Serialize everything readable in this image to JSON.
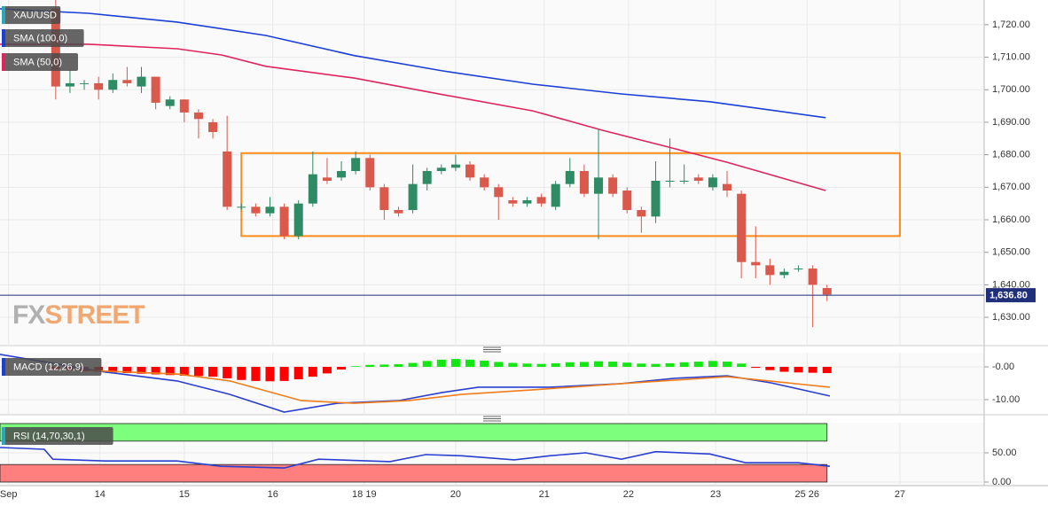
{
  "chart_data": [
    {
      "type": "candlestick",
      "name": "XAU/USD",
      "open": [
        1725,
        1701,
        1702,
        1702,
        1700,
        1703,
        1701,
        1704,
        1695,
        1697,
        1693,
        1690,
        1681,
        1664,
        1664,
        1662,
        1664,
        1655,
        1665,
        1673,
        1673,
        1675,
        1679,
        1670,
        1663,
        1663,
        1671,
        1675,
        1676,
        1677,
        1673,
        1670,
        1666,
        1665,
        1667,
        1664,
        1671,
        1675,
        1668,
        1673,
        1669,
        1663,
        1661,
        1672,
        1672,
        1673,
        1670,
        1671,
        1668,
        1647,
        1646,
        1643,
        1645,
        1645,
        1639
      ],
      "high": [
        1728,
        1706,
        1703,
        1704,
        1705,
        1707,
        1707,
        1704,
        1698,
        1697,
        1694,
        1691,
        1692,
        1665,
        1665,
        1667,
        1665,
        1666,
        1681,
        1679,
        1678,
        1681,
        1680,
        1671,
        1664,
        1677,
        1676,
        1677,
        1680,
        1678,
        1674,
        1671,
        1667,
        1667,
        1668,
        1672,
        1679,
        1677,
        1688,
        1674,
        1670,
        1664,
        1678,
        1685,
        1677,
        1674,
        1674,
        1675,
        1669,
        1658,
        1648,
        1645,
        1646,
        1646,
        1640
      ],
      "low": [
        1697,
        1699,
        1700,
        1697,
        1699,
        1701,
        1699,
        1694,
        1694,
        1690,
        1685,
        1685,
        1663,
        1663,
        1661,
        1661,
        1654,
        1654,
        1664,
        1671,
        1672,
        1674,
        1669,
        1660,
        1661,
        1662,
        1669,
        1674,
        1675,
        1672,
        1669,
        1660,
        1664,
        1664,
        1664,
        1663,
        1670,
        1667,
        1654,
        1667,
        1662,
        1656,
        1659,
        1670,
        1671,
        1671,
        1669,
        1667,
        1642,
        1642,
        1640,
        1642,
        1644,
        1627,
        1635
      ],
      "close": [
        1701,
        1702,
        1702,
        1700,
        1703,
        1702,
        1704,
        1696,
        1697,
        1693,
        1691,
        1687,
        1664,
        1664,
        1662,
        1664,
        1655,
        1665,
        1674,
        1672,
        1675,
        1679,
        1670,
        1663,
        1662,
        1671,
        1675,
        1676,
        1677,
        1673,
        1670,
        1667,
        1665,
        1666,
        1665,
        1671,
        1675,
        1668,
        1673,
        1668,
        1663,
        1661,
        1672,
        1672,
        1672,
        1672,
        1673,
        1669,
        1647,
        1646,
        1643,
        1644,
        1645,
        1640,
        1637
      ],
      "up_color": "#2e8b63",
      "down_color": "#d9594c",
      "series": [
        {
          "name": "SMA (100,0)",
          "color": "#1a3fd6",
          "x": [
            -3.9,
            2.3,
            8.5,
            14.7,
            20.9,
            27.1,
            33.4,
            39.6,
            45.8,
            53.9
          ],
          "values": [
            1724.9,
            1723.5,
            1720.8,
            1716.7,
            1710.5,
            1705.8,
            1701.7,
            1698.7,
            1696.3,
            1691.4
          ]
        },
        {
          "name": "SMA (50,0)",
          "color": "#e0245e",
          "x": [
            -3.9,
            2.3,
            8.5,
            11.6,
            14.7,
            20.9,
            27.1,
            33.4,
            38.3,
            42.7,
            47.0,
            48.9,
            53.9
          ],
          "values": [
            1714,
            1714,
            1712.6,
            1710.7,
            1707.2,
            1703.6,
            1698.5,
            1693.5,
            1687.5,
            1682.6,
            1677.7,
            1675.3,
            1669
          ]
        }
      ],
      "box": {
        "x": [
          13.0,
          59.1
        ],
        "y": [
          1655,
          1680.5
        ],
        "color": "#ff8c1a"
      },
      "last": {
        "value": 1636.8,
        "label": "1,636.80",
        "color": "#1f2f7a"
      },
      "watermark": [
        "FX",
        "STREET"
      ],
      "xlim": [
        -3.9,
        65.0
      ],
      "xticks": [
        {
          "value": -3.3,
          "label": "Sep"
        },
        {
          "value": 3.1,
          "label": "14"
        },
        {
          "value": 9.0,
          "label": "15"
        },
        {
          "value": 15.2,
          "label": "16"
        },
        {
          "value": 21.6,
          "label": "18 19"
        },
        {
          "value": 28.0,
          "label": "20"
        },
        {
          "value": 34.2,
          "label": "21"
        },
        {
          "value": 40.1,
          "label": "22"
        },
        {
          "value": 46.2,
          "label": "23"
        },
        {
          "value": 52.6,
          "label": "25 26"
        },
        {
          "value": 59.1,
          "label": "27"
        }
      ],
      "ylim": [
        1621.3,
        1727.6
      ],
      "yticks": [
        {
          "value": 1630,
          "label": "1,630.00"
        },
        {
          "value": 1640,
          "label": "1,640.00"
        },
        {
          "value": 1650,
          "label": "1,650.00"
        },
        {
          "value": 1660,
          "label": "1,660.00"
        },
        {
          "value": 1670,
          "label": "1,670.00"
        },
        {
          "value": 1680,
          "label": "1,680.00"
        },
        {
          "value": 1690,
          "label": "1,690.00"
        },
        {
          "value": 1700,
          "label": "1,700.00"
        },
        {
          "value": 1710,
          "label": "1,710.00"
        },
        {
          "value": 1720,
          "label": "1,720.00"
        }
      ],
      "grid": true
    },
    {
      "type": "macd",
      "name": "MACD (12,26,9)",
      "histogram": [
        -0.8,
        -1.0,
        -1.3,
        -1.5,
        -1.7,
        -1.9,
        -2.1,
        -2.3,
        -2.5,
        -2.7,
        -2.8,
        -3.0,
        -3.5,
        -4.0,
        -4.3,
        -4.4,
        -4.3,
        -3.8,
        -3.0,
        -2.0,
        -0.8,
        0.2,
        0.6,
        0.7,
        0.8,
        1.2,
        1.8,
        2.2,
        2.4,
        2.2,
        1.9,
        1.5,
        1.2,
        1.0,
        0.9,
        1.1,
        1.4,
        1.5,
        1.7,
        1.6,
        1.3,
        1.0,
        0.9,
        1.1,
        1.4,
        1.6,
        1.8,
        1.6,
        1.0,
        -0.3,
        -1.0,
        -1.5,
        -1.7,
        -1.8,
        -1.9
      ],
      "up_color": "#14e614",
      "down_color": "#ff0000",
      "series": [
        {
          "color": "#2a3fd0",
          "x": [
            -3.9,
            3.5,
            8.5,
            12.2,
            16.0,
            19.7,
            24.0,
            27.1,
            29.6,
            34.6,
            39.6,
            43.3,
            47.0,
            50.1,
            54.2
          ],
          "values": [
            3.8,
            -1.6,
            -4.3,
            -8.4,
            -13.8,
            -11.1,
            -10.3,
            -7.8,
            -6.2,
            -6.2,
            -5.1,
            -3.5,
            -2.7,
            -4.9,
            -8.9
          ]
        },
        {
          "color": "#f07c1a",
          "x": [
            2.3,
            8.5,
            12.2,
            17.2,
            20.9,
            24.7,
            28.4,
            33.4,
            39.6,
            47.0,
            54.2
          ],
          "values": [
            -1.1,
            -2.2,
            -4.3,
            -10.3,
            -11.1,
            -10.3,
            -8.4,
            -7.0,
            -5.1,
            -3.0,
            -6.2
          ]
        }
      ],
      "ylim": [
        -14.6,
        4.32
      ],
      "yticks": [
        {
          "value": 0,
          "label": "-0.00"
        },
        {
          "value": -10,
          "label": "-10.00"
        }
      ]
    },
    {
      "type": "rsi",
      "name": "RSI (14,70,30,1)",
      "bands": [
        {
          "from": 70,
          "to": 100,
          "color": "#7dff7d"
        },
        {
          "from": 0,
          "to": 30,
          "color": "#ff7f7f"
        }
      ],
      "series": [
        {
          "color": "#2a3fd0",
          "x": [
            -3.9,
            -0.8,
            -0.2,
            3.5,
            8.5,
            11.6,
            16.0,
            18.4,
            23.4,
            25.9,
            28.4,
            32.1,
            34.6,
            37.1,
            39.6,
            42.0,
            45.8,
            48.3,
            52.0,
            54.2
          ],
          "values": [
            59,
            56,
            39,
            36,
            36,
            27,
            24,
            39,
            35,
            47,
            45,
            38,
            45,
            50,
            39,
            52,
            48,
            33,
            33,
            27
          ]
        }
      ],
      "ylim": [
        -6.1,
        101.5
      ],
      "yticks": [
        {
          "value": 50,
          "label": "50.00"
        },
        {
          "value": 0,
          "label": "0.00"
        }
      ]
    }
  ]
}
